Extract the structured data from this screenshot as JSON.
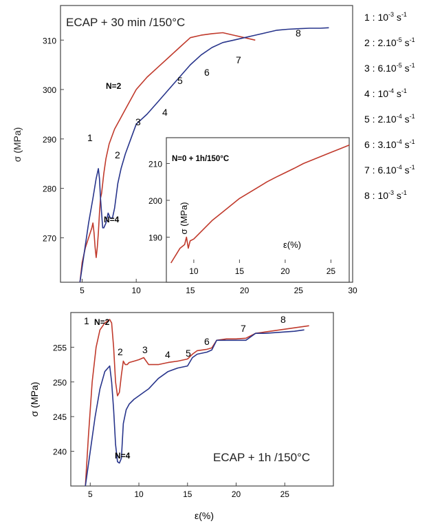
{
  "chart_data": [
    {
      "type": "line",
      "title": "ECAP + 30 min /150°C",
      "xlabel": "",
      "ylabel": "σ (MPa)",
      "xlim": [
        3,
        30
      ],
      "ylim": [
        261,
        317
      ],
      "xticks": [
        "5",
        "10",
        "15",
        "20",
        "25",
        "30"
      ],
      "yticks": [
        "270",
        "280",
        "290",
        "300",
        "310"
      ],
      "xtick_values": [
        5,
        10,
        15,
        20,
        25,
        30
      ],
      "ytick_values": [
        270,
        280,
        290,
        300,
        310
      ],
      "colors": {
        "N2": "#c0392b",
        "N4": "#27348b"
      },
      "series": [
        {
          "name": "N=2",
          "x": [
            4.8,
            5.0,
            5.3,
            5.6,
            5.9,
            6.0,
            6.1,
            6.2,
            6.3,
            6.4,
            6.5,
            6.6,
            6.7,
            6.8,
            7.0,
            7.2,
            7.5,
            8.0,
            8.5,
            9.0,
            10.0,
            11.0,
            12.0,
            13.0,
            14.0,
            15.0,
            16.0,
            17.0,
            18.0,
            19.0,
            20.0,
            21.0
          ],
          "y": [
            261,
            265,
            268,
            270,
            272,
            273,
            271,
            268,
            266,
            268,
            271,
            275,
            278,
            279,
            283,
            286,
            289,
            292,
            294,
            296,
            300,
            302.5,
            304.5,
            306.5,
            308.5,
            310.5,
            311,
            311.3,
            311.5,
            311,
            310.5,
            310
          ]
        },
        {
          "name": "N=4",
          "x": [
            4.8,
            5.2,
            5.6,
            6.0,
            6.3,
            6.5,
            6.6,
            6.7,
            6.8,
            6.9,
            7.0,
            7.2,
            7.4,
            7.6,
            7.8,
            8.0,
            8.3,
            8.6,
            9.0,
            9.5,
            10.0,
            11.0,
            12.0,
            13.0,
            14.0,
            15.0,
            16.0,
            17.0,
            18.0,
            19.0,
            20.0,
            21.0,
            22.0,
            23.0,
            24.0,
            25.0,
            26.0,
            27.0,
            27.8
          ],
          "y": [
            261,
            267,
            273,
            278,
            282,
            284,
            282,
            278,
            275,
            272,
            272,
            273,
            275,
            274,
            274,
            276,
            281,
            284,
            287,
            290,
            293,
            295,
            297.5,
            300,
            302.5,
            305,
            307,
            308.5,
            309.5,
            310,
            310.5,
            311,
            311.5,
            312,
            312.2,
            312.3,
            312.4,
            312.4,
            312.5
          ]
        }
      ],
      "annotations": [
        "1",
        "2",
        "3",
        "4",
        "5",
        "6",
        "7",
        "8"
      ],
      "curve_labels": [
        "N=2",
        "N=4"
      ],
      "inset": {
        "title": "N=0 + 1h/150°C",
        "xlabel": "ε(%)",
        "ylabel": "σ (MPa)",
        "xlim": [
          7,
          27
        ],
        "ylim": [
          183,
          217
        ],
        "xticks": [
          "10",
          "15",
          "20",
          "25"
        ],
        "yticks": [
          "190",
          "200",
          "210"
        ],
        "xtick_values": [
          10,
          15,
          20,
          25
        ],
        "ytick_values": [
          190,
          200,
          210
        ],
        "x": [
          7.5,
          8.0,
          8.5,
          9.0,
          9.2,
          9.4,
          9.6,
          10,
          11,
          12,
          13,
          14,
          15,
          16,
          17,
          18,
          19,
          20,
          21,
          22,
          23,
          24,
          25,
          26,
          27
        ],
        "y": [
          183,
          185,
          187,
          188,
          190,
          187,
          189,
          189.5,
          192,
          194.5,
          196.5,
          198.5,
          200.5,
          202,
          203.5,
          205,
          206.3,
          207.5,
          208.7,
          210,
          211,
          212,
          213,
          214,
          215
        ]
      }
    },
    {
      "type": "line",
      "title": "ECAP + 1h /150°C",
      "xlabel": "ε(%)",
      "ylabel": "σ (MPa)",
      "xlim": [
        3,
        30
      ],
      "ylim": [
        235,
        260
      ],
      "xticks": [
        "5",
        "10",
        "15",
        "20",
        "25"
      ],
      "yticks": [
        "240",
        "245",
        "250",
        "255"
      ],
      "xtick_values": [
        5,
        10,
        15,
        20,
        25
      ],
      "ytick_values": [
        240,
        245,
        250,
        255
      ],
      "colors": {
        "N2": "#c0392b",
        "N4": "#27348b"
      },
      "series": [
        {
          "name": "N=2",
          "x": [
            4.5,
            4.8,
            5.2,
            5.6,
            6.0,
            6.5,
            7.0,
            7.2,
            7.4,
            7.6,
            7.8,
            8.0,
            8.2,
            8.4,
            8.6,
            8.8,
            9.0,
            9.5,
            10.0,
            10.5,
            11,
            12,
            13,
            14,
            15,
            15.5,
            16,
            17,
            17.5,
            18,
            19,
            20,
            21,
            22,
            23,
            24,
            25,
            26,
            27,
            27.5
          ],
          "y": [
            235,
            242,
            250,
            255,
            257.5,
            258.5,
            259,
            258.5,
            255,
            250,
            248,
            248.5,
            251,
            253,
            252.5,
            252.5,
            252.8,
            253,
            253.2,
            253.5,
            252.5,
            252.5,
            252.8,
            253,
            253.3,
            254,
            254.5,
            254.7,
            254.9,
            256,
            256.2,
            256.2,
            256.3,
            257,
            257.2,
            257.4,
            257.6,
            257.8,
            258,
            258.1
          ]
        },
        {
          "name": "N=4",
          "x": [
            4.5,
            5.0,
            5.5,
            6.0,
            6.5,
            7.0,
            7.2,
            7.4,
            7.6,
            7.8,
            8.0,
            8.2,
            8.4,
            8.7,
            9.0,
            9.5,
            10.0,
            10.5,
            11,
            12,
            13,
            14,
            15,
            15.5,
            16,
            17,
            17.5,
            18,
            19,
            20,
            21,
            22,
            23,
            24,
            25,
            26,
            27
          ],
          "y": [
            235,
            240,
            245,
            249,
            251.5,
            252.3,
            250,
            246,
            241,
            238.5,
            238.3,
            239,
            244,
            246,
            246.8,
            247.5,
            248,
            248.5,
            249,
            250.5,
            251.5,
            252,
            252.3,
            253.5,
            254,
            254.3,
            254.6,
            256,
            256,
            256,
            256,
            257,
            257,
            257.1,
            257.2,
            257.3,
            257.5
          ]
        }
      ],
      "annotations": [
        "1",
        "2",
        "3",
        "4",
        "5",
        "6",
        "7",
        "8"
      ],
      "curve_labels": [
        "N=2",
        "N=4"
      ]
    }
  ],
  "legend": [
    {
      "num": "1 :",
      "coef": "10",
      "exp": "-3",
      "unit": "s",
      "uexp": "-1"
    },
    {
      "num": "2 :",
      "coef": "2.10",
      "exp": "-5",
      "unit": "s",
      "uexp": "-1"
    },
    {
      "num": "3 :",
      "coef": "6.10",
      "exp": "-5",
      "unit": "s",
      "uexp": "-1"
    },
    {
      "num": "4 :",
      "coef": "10",
      "exp": "-4",
      "unit": "s",
      "uexp": "-1"
    },
    {
      "num": "5 :",
      "coef": "2.10",
      "exp": "-4",
      "unit": "s",
      "uexp": "-1"
    },
    {
      "num": "6 :",
      "coef": "3.10",
      "exp": "-4",
      "unit": "s",
      "uexp": "-1"
    },
    {
      "num": "7 :",
      "coef": "6.10",
      "exp": "-4",
      "unit": "s",
      "uexp": "-1"
    },
    {
      "num": "8 :",
      "coef": "10",
      "exp": "-3",
      "unit": "s",
      "uexp": "-1"
    }
  ]
}
